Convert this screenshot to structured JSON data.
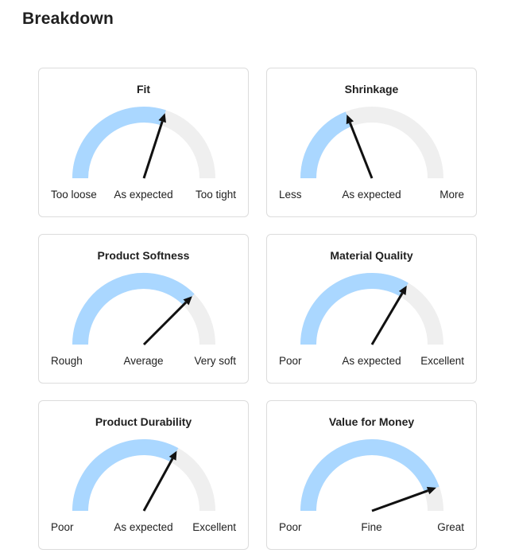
{
  "page": {
    "title": "Breakdown"
  },
  "colors": {
    "fill": "#aad7ff",
    "track": "#efefef",
    "needle": "#111111"
  },
  "cards": [
    {
      "title": "Fit",
      "min_label": "Too loose",
      "mid_label": "As expected",
      "max_label": "Too tight",
      "value": 0.6
    },
    {
      "title": "Shrinkage",
      "min_label": "Less",
      "mid_label": "As expected",
      "max_label": "More",
      "value": 0.38
    },
    {
      "title": "Product Softness",
      "min_label": "Rough",
      "mid_label": "Average",
      "max_label": "Very soft",
      "value": 0.75
    },
    {
      "title": "Material Quality",
      "min_label": "Poor",
      "mid_label": "As expected",
      "max_label": "Excellent",
      "value": 0.67
    },
    {
      "title": "Product Durability",
      "min_label": "Poor",
      "mid_label": "As expected",
      "max_label": "Excellent",
      "value": 0.66
    },
    {
      "title": "Value for Money",
      "min_label": "Poor",
      "mid_label": "Fine",
      "max_label": "Great",
      "value": 0.89
    }
  ]
}
